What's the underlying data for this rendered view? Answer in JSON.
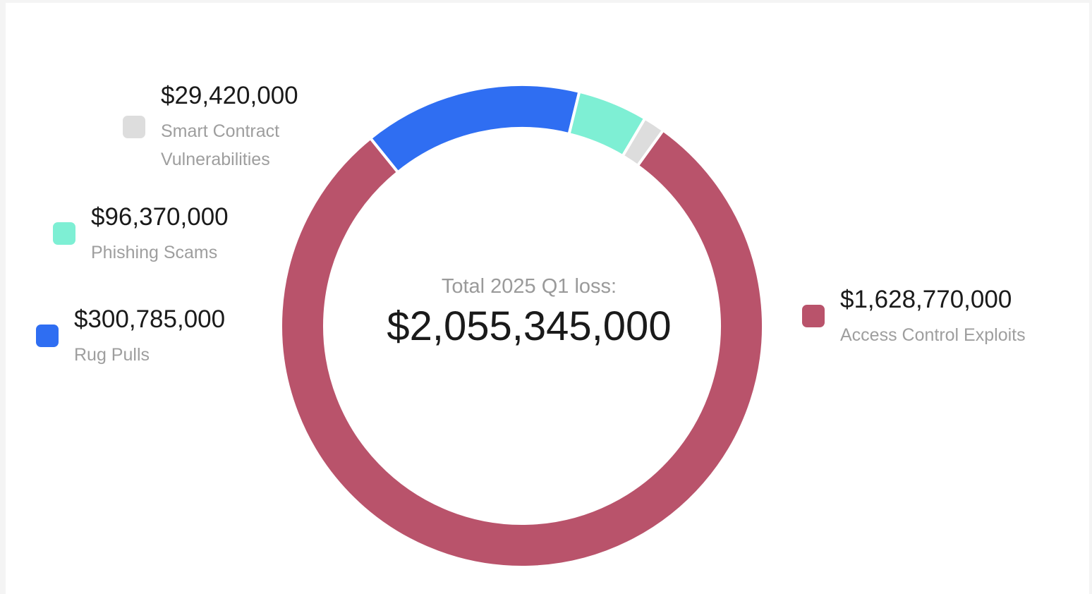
{
  "colors": {
    "access_control": "#b9536b",
    "rug_pulls": "#2f6ef2",
    "phishing": "#7eefd4",
    "smart_contract": "#dddddd",
    "page_background": "#f4f4f4",
    "card_background": "#ffffff"
  },
  "center": {
    "label": "Total 2025 Q1 loss:",
    "value": "$2,055,345,000"
  },
  "chart_data": {
    "type": "pie",
    "style": "donut",
    "total": 2055345000,
    "slices": [
      {
        "name": "Access Control Exploits",
        "value": 1628770000,
        "value_label": "$1,628,770,000",
        "color": "#b9536b"
      },
      {
        "name": "Rug Pulls",
        "value": 300785000,
        "value_label": "$300,785,000",
        "color": "#2f6ef2"
      },
      {
        "name": "Phishing Scams",
        "value": 96370000,
        "value_label": "$96,370,000",
        "color": "#7eefd4"
      },
      {
        "name": "Smart Contract Vulnerabilities",
        "value": 29420000,
        "value_label": "$29,420,000",
        "color": "#dddddd"
      }
    ]
  },
  "legend": {
    "smart_contract": {
      "value": "$29,420,000",
      "label_line1": "Smart Contract",
      "label_line2": "Vulnerabilities"
    },
    "phishing": {
      "value": "$96,370,000",
      "label": "Phishing Scams"
    },
    "rug_pulls": {
      "value": "$300,785,000",
      "label": "Rug Pulls"
    },
    "access_control": {
      "value": "$1,628,770,000",
      "label": "Access Control Exploits"
    }
  }
}
